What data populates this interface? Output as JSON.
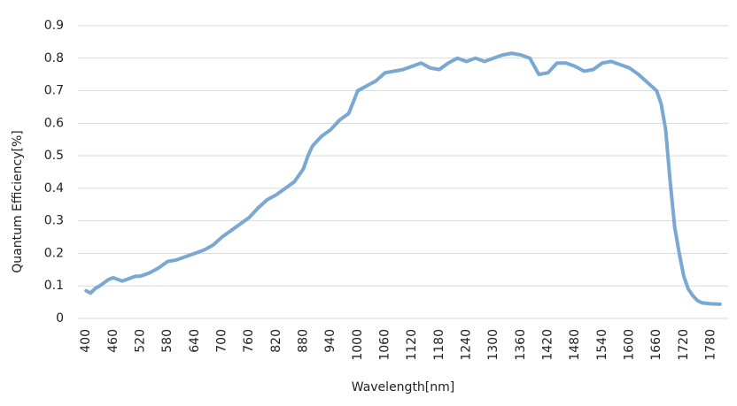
{
  "chart_data": {
    "type": "line",
    "x_label": "Wavelength[nm]",
    "y_label": "Quantum Efficiency[%]",
    "x": [
      400,
      410,
      420,
      430,
      440,
      450,
      460,
      470,
      480,
      490,
      500,
      510,
      520,
      540,
      560,
      580,
      600,
      620,
      640,
      660,
      680,
      700,
      720,
      740,
      760,
      780,
      800,
      820,
      840,
      860,
      880,
      890,
      900,
      920,
      940,
      960,
      980,
      1000,
      1020,
      1040,
      1060,
      1080,
      1100,
      1120,
      1140,
      1160,
      1180,
      1200,
      1220,
      1240,
      1260,
      1280,
      1300,
      1320,
      1340,
      1360,
      1380,
      1400,
      1420,
      1440,
      1460,
      1480,
      1500,
      1520,
      1540,
      1560,
      1580,
      1600,
      1620,
      1640,
      1660,
      1670,
      1680,
      1690,
      1700,
      1710,
      1720,
      1730,
      1740,
      1750,
      1760,
      1780,
      1800
    ],
    "series": [
      {
        "name": "Quantum Efficiency",
        "color": "#7aa8d2",
        "values": [
          0.085,
          0.078,
          0.092,
          0.1,
          0.11,
          0.12,
          0.125,
          0.12,
          0.115,
          0.12,
          0.125,
          0.13,
          0.13,
          0.14,
          0.155,
          0.175,
          0.18,
          0.19,
          0.2,
          0.21,
          0.225,
          0.25,
          0.27,
          0.29,
          0.31,
          0.34,
          0.365,
          0.38,
          0.4,
          0.42,
          0.46,
          0.5,
          0.53,
          0.56,
          0.58,
          0.61,
          0.63,
          0.7,
          0.715,
          0.73,
          0.755,
          0.76,
          0.765,
          0.775,
          0.785,
          0.77,
          0.765,
          0.785,
          0.8,
          0.79,
          0.8,
          0.79,
          0.8,
          0.81,
          0.815,
          0.81,
          0.8,
          0.75,
          0.755,
          0.785,
          0.785,
          0.775,
          0.76,
          0.765,
          0.785,
          0.79,
          0.78,
          0.77,
          0.75,
          0.725,
          0.7,
          0.66,
          0.58,
          0.42,
          0.28,
          0.2,
          0.13,
          0.09,
          0.07,
          0.055,
          0.048,
          0.045,
          0.044
        ]
      }
    ],
    "xlim": [
      382,
      1818
    ],
    "xticks": [
      400,
      460,
      520,
      580,
      640,
      700,
      760,
      820,
      880,
      940,
      1000,
      1060,
      1120,
      1180,
      1240,
      1300,
      1360,
      1420,
      1480,
      1540,
      1600,
      1660,
      1720,
      1780
    ],
    "ylim": [
      0,
      0.9
    ],
    "yticks": [
      0,
      0.1,
      0.2,
      0.3,
      0.4,
      0.5,
      0.6,
      0.7,
      0.8,
      0.9
    ],
    "grid": true
  }
}
